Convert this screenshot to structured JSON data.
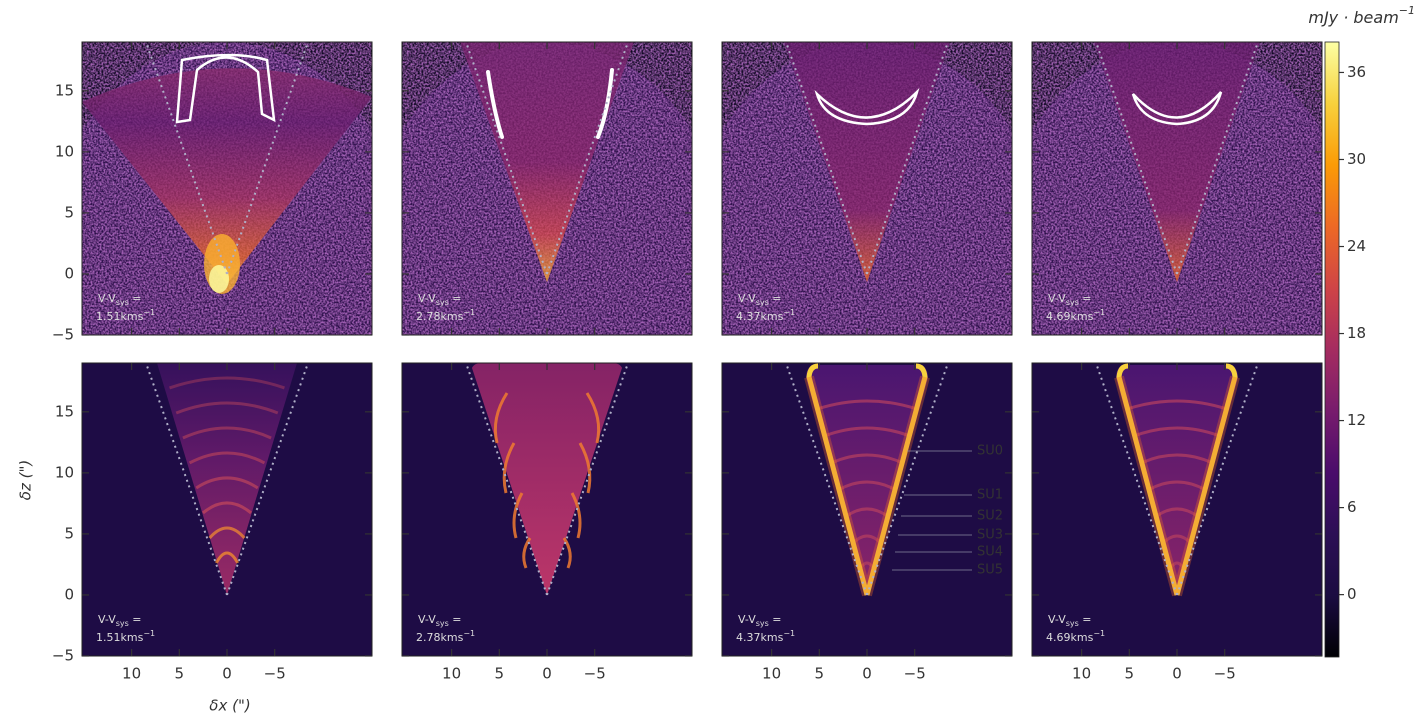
{
  "chart_data": {
    "type": "image",
    "xlabel": "δx (\")",
    "ylabel": "δz (\")",
    "xlim": [
      15.2,
      -15.2
    ],
    "ylim": [
      -5,
      19
    ],
    "xticks": [
      10,
      5,
      0,
      {
        "value": -5,
        "label": "−5"
      }
    ],
    "yticks": [
      {
        "value": -5,
        "label": "−5"
      },
      0,
      5,
      10,
      15
    ],
    "panels": [
      {
        "annotation": {
          "lead": "V-V",
          "sub": "sys",
          "tail": " =",
          "line2": "1.51kms",
          "sup": "−1"
        }
      },
      {
        "annotation": {
          "lead": "V-V",
          "sub": "sys",
          "tail": " =",
          "line2": "2.78kms",
          "sup": "−1"
        }
      },
      {
        "annotation": {
          "lead": "V-V",
          "sub": "sys",
          "tail": " =",
          "line2": "4.37kms",
          "sup": "−1"
        }
      },
      {
        "annotation": {
          "lead": "V-V",
          "sub": "sys",
          "tail": " =",
          "line2": "4.69kms",
          "sup": "−1"
        }
      },
      {
        "annotation": {
          "lead": "V-V",
          "sub": "sys",
          "tail": " =",
          "line2": "1.51kms",
          "sup": "−1"
        }
      },
      {
        "annotation": {
          "lead": "V-V",
          "sub": "sys",
          "tail": " =",
          "line2": "2.78kms",
          "sup": "−1"
        }
      },
      {
        "annotation": {
          "lead": "V-V",
          "sub": "sys",
          "tail": " =",
          "line2": "4.37kms",
          "sup": "−1"
        }
      },
      {
        "annotation": {
          "lead": "V-V",
          "sub": "sys",
          "tail": " =",
          "line2": "4.69kms",
          "sup": "−1"
        }
      }
    ],
    "annotations": [
      "SU0",
      "SU1",
      "SU2",
      "SU3",
      "SU4",
      "SU5"
    ],
    "colorbar": {
      "label": "mJy · beam",
      "label_sup": "−1",
      "lim": [
        -4.3,
        38.1
      ],
      "ticks": [
        0,
        6,
        12,
        18,
        24,
        30,
        36
      ],
      "colormap": [
        "#000004",
        "#1b0c41",
        "#2c0f55",
        "#4a0c6b",
        "#781c6d",
        "#a52c60",
        "#cf4446",
        "#ed6925",
        "#fb9b06",
        "#f7d13d",
        "#fcffa4"
      ]
    }
  }
}
